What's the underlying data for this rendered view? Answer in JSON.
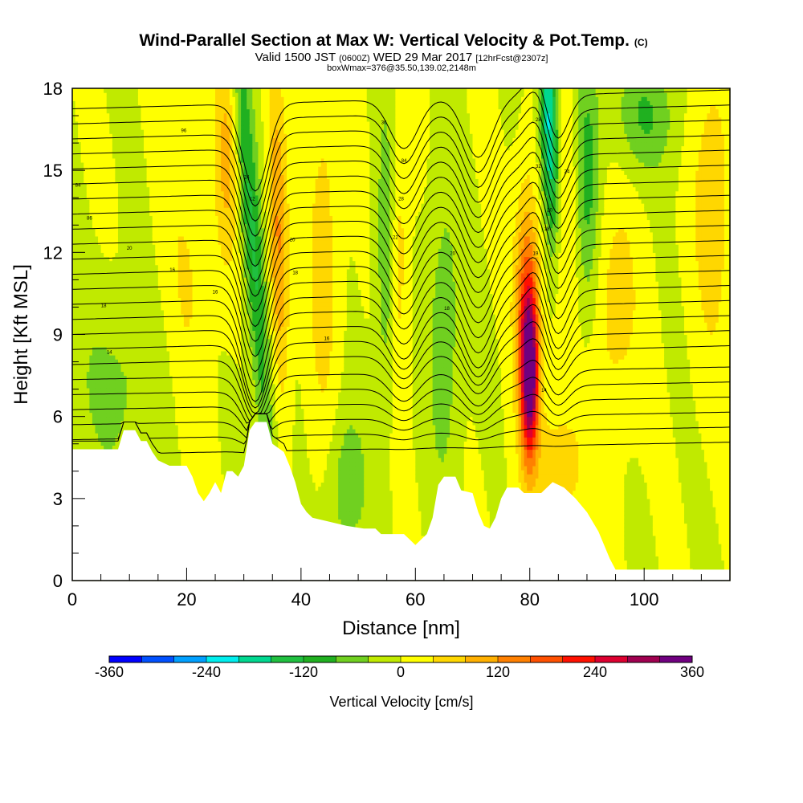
{
  "chart_data": {
    "type": "heatmap",
    "title": "Wind-Parallel Section at Max W: Vertical Velocity & Pot.Temp.",
    "title_mark": "(C)",
    "subtitle_parts": [
      "Valid 1500 JST ",
      "(0600Z)",
      " WED 29 Mar 2017 ",
      "[12hrFcst@2307z]"
    ],
    "subtitle2": "boxWmax=376@35.50,139.02,2148m",
    "xlabel": "Distance [nm]",
    "ylabel": "Height [Kft MSL]",
    "xlim": [
      0,
      115
    ],
    "ylim": [
      0,
      18
    ],
    "xticks": [
      0,
      20,
      40,
      60,
      80,
      100
    ],
    "yticks": [
      0,
      3,
      6,
      9,
      12,
      15,
      18
    ],
    "colorbar": {
      "label": "Vertical Velocity [cm/s]",
      "range": [
        -360,
        360
      ],
      "tick_values": [
        -360,
        -240,
        -120,
        0,
        120,
        240,
        360
      ],
      "tick_labels": [
        "-360",
        "-240",
        "-120",
        "0",
        "120",
        "240",
        "360"
      ],
      "colors": [
        "#0000ff",
        "#0050ff",
        "#00a0ff",
        "#00eeee",
        "#00d890",
        "#20c040",
        "#20b020",
        "#70d020",
        "#c0ea00",
        "#ffff00",
        "#ffd700",
        "#ffb000",
        "#ff8000",
        "#ff5000",
        "#ff1000",
        "#dd0030",
        "#a00050",
        "#700080"
      ]
    },
    "terrain_kft": [
      [
        0,
        4.8
      ],
      [
        8,
        4.8
      ],
      [
        9,
        5.5
      ],
      [
        11,
        5.5
      ],
      [
        12,
        5.1
      ],
      [
        13,
        5.1
      ],
      [
        14,
        4.7
      ],
      [
        15,
        4.4
      ],
      [
        17,
        4.2
      ],
      [
        19,
        4.2
      ],
      [
        20,
        4.2
      ],
      [
        21,
        3.8
      ],
      [
        22,
        3.2
      ],
      [
        23,
        2.9
      ],
      [
        24,
        3.2
      ],
      [
        25,
        3.6
      ],
      [
        26,
        3.2
      ],
      [
        27,
        4.0
      ],
      [
        28,
        4.0
      ],
      [
        29,
        3.8
      ],
      [
        30,
        4.2
      ],
      [
        31,
        5.5
      ],
      [
        32,
        5.8
      ],
      [
        34,
        5.8
      ],
      [
        35,
        5.0
      ],
      [
        37,
        4.7
      ],
      [
        38,
        4.2
      ],
      [
        39,
        3.6
      ],
      [
        40,
        2.8
      ],
      [
        41,
        2.5
      ],
      [
        42,
        2.3
      ],
      [
        44,
        2.2
      ],
      [
        46,
        2.1
      ],
      [
        48,
        2.0
      ],
      [
        51,
        1.9
      ],
      [
        53,
        1.9
      ],
      [
        54,
        1.7
      ],
      [
        58,
        1.7
      ],
      [
        59,
        1.5
      ],
      [
        60,
        1.3
      ],
      [
        61,
        1.5
      ],
      [
        62,
        1.7
      ],
      [
        63,
        2.3
      ],
      [
        64,
        3.5
      ],
      [
        65,
        3.8
      ],
      [
        67,
        3.8
      ],
      [
        68,
        3.3
      ],
      [
        70,
        3.2
      ],
      [
        71,
        2.5
      ],
      [
        72,
        2.0
      ],
      [
        73,
        1.9
      ],
      [
        74,
        2.3
      ],
      [
        75,
        3.0
      ],
      [
        76,
        3.4
      ],
      [
        78,
        3.4
      ],
      [
        79,
        3.2
      ],
      [
        80,
        3.2
      ],
      [
        82,
        3.2
      ],
      [
        84,
        3.6
      ],
      [
        86,
        3.4
      ],
      [
        88,
        3.0
      ],
      [
        90,
        2.5
      ],
      [
        92,
        1.8
      ],
      [
        94,
        0.8
      ],
      [
        95,
        0.4
      ],
      [
        96,
        0.4
      ],
      [
        115,
        0.4
      ]
    ],
    "w_features": [
      {
        "x": 31.5,
        "y": 12.5,
        "sx": 1.3,
        "sy": 6.5,
        "amp": -130,
        "tilt": -0.35
      },
      {
        "x": 27.0,
        "y": 15.5,
        "sx": 1.5,
        "sy": 3.0,
        "amp": 90,
        "tilt": 0.0
      },
      {
        "x": 36.0,
        "y": 12.5,
        "sx": 1.2,
        "sy": 4.0,
        "amp": 130,
        "tilt": -0.1
      },
      {
        "x": 44.0,
        "y": 12.0,
        "sx": 2.0,
        "sy": 5.0,
        "amp": 60,
        "tilt": 0.0
      },
      {
        "x": 55.0,
        "y": 12.0,
        "sx": 1.3,
        "sy": 4.0,
        "amp": -80,
        "tilt": 0.0
      },
      {
        "x": 57.0,
        "y": 12.0,
        "sx": 1.2,
        "sy": 4.0,
        "amp": 70,
        "tilt": 0.0
      },
      {
        "x": 65.0,
        "y": 9.0,
        "sx": 2.0,
        "sy": 4.0,
        "amp": -70,
        "tilt": 0.0
      },
      {
        "x": 48.0,
        "y": 3.5,
        "sx": 2.5,
        "sy": 2.0,
        "amp": -70,
        "tilt": 0.0
      },
      {
        "x": 80.0,
        "y": 7.5,
        "sx": 1.0,
        "sy": 2.0,
        "amp": 320,
        "tilt": 0.0
      },
      {
        "x": 79.5,
        "y": 10.0,
        "sx": 1.5,
        "sy": 3.0,
        "amp": 170,
        "tilt": 0.0
      },
      {
        "x": 83.5,
        "y": 16.5,
        "sx": 1.1,
        "sy": 3.0,
        "amp": -230,
        "tilt": -0.15
      },
      {
        "x": 90.0,
        "y": 14.5,
        "sx": 1.5,
        "sy": 3.5,
        "amp": -100,
        "tilt": 0.0
      },
      {
        "x": 86.0,
        "y": 14.0,
        "sx": 2.0,
        "sy": 4.0,
        "amp": 50,
        "tilt": 0.0
      },
      {
        "x": 100.0,
        "y": 17.0,
        "sx": 4.0,
        "sy": 1.5,
        "amp": -80,
        "tilt": 0.0
      },
      {
        "x": 95.0,
        "y": 10.0,
        "sx": 3.0,
        "sy": 3.0,
        "amp": 60,
        "tilt": 0.0
      },
      {
        "x": 112.0,
        "y": 14.0,
        "sx": 2.5,
        "sy": 4.0,
        "amp": 70,
        "tilt": 0.0
      },
      {
        "x": 85.0,
        "y": 4.0,
        "sx": 4.0,
        "sy": 2.0,
        "amp": 60,
        "tilt": 0.0
      },
      {
        "x": 20.0,
        "y": 11.0,
        "sx": 3.0,
        "sy": 4.0,
        "amp": 40,
        "tilt": 0.0
      },
      {
        "x": 8.0,
        "y": 7.0,
        "sx": 6.0,
        "sy": 2.5,
        "amp": -50,
        "tilt": 0.0
      }
    ],
    "contour_labels": [
      {
        "text": "14",
        "x": 6.5,
        "y": 8.3
      },
      {
        "text": "18",
        "x": 5.5,
        "y": 10.0
      },
      {
        "text": "16",
        "x": 17.5,
        "y": 11.3
      },
      {
        "text": "20",
        "x": 10.0,
        "y": 12.1
      },
      {
        "text": "86",
        "x": 3.0,
        "y": 13.2
      },
      {
        "text": "84",
        "x": 1.0,
        "y": 14.4
      },
      {
        "text": "96",
        "x": 19.5,
        "y": 16.4
      },
      {
        "text": "16",
        "x": 25.0,
        "y": 10.5
      },
      {
        "text": "12",
        "x": 31.5,
        "y": 13.9
      },
      {
        "text": "24",
        "x": 30.5,
        "y": 14.7
      },
      {
        "text": "20",
        "x": 38.5,
        "y": 12.4
      },
      {
        "text": "18",
        "x": 39.0,
        "y": 11.2
      },
      {
        "text": "16",
        "x": 44.5,
        "y": 8.8
      },
      {
        "text": "36",
        "x": 54.5,
        "y": 16.7
      },
      {
        "text": "84",
        "x": 58.0,
        "y": 15.3
      },
      {
        "text": "28",
        "x": 57.5,
        "y": 13.9
      },
      {
        "text": "22",
        "x": 56.5,
        "y": 12.5
      },
      {
        "text": "20",
        "x": 66.5,
        "y": 11.9
      },
      {
        "text": "18",
        "x": 65.5,
        "y": 9.9
      },
      {
        "text": "28",
        "x": 81.5,
        "y": 16.8
      },
      {
        "text": "32",
        "x": 81.5,
        "y": 15.1
      },
      {
        "text": "24",
        "x": 86.5,
        "y": 14.9
      },
      {
        "text": "20",
        "x": 83.5,
        "y": 13.5
      },
      {
        "text": "18",
        "x": 83.0,
        "y": 12.8
      },
      {
        "text": "19",
        "x": 81.0,
        "y": 11.9
      },
      {
        "text": "14",
        "x": 82.5,
        "y": 6.9
      }
    ]
  }
}
